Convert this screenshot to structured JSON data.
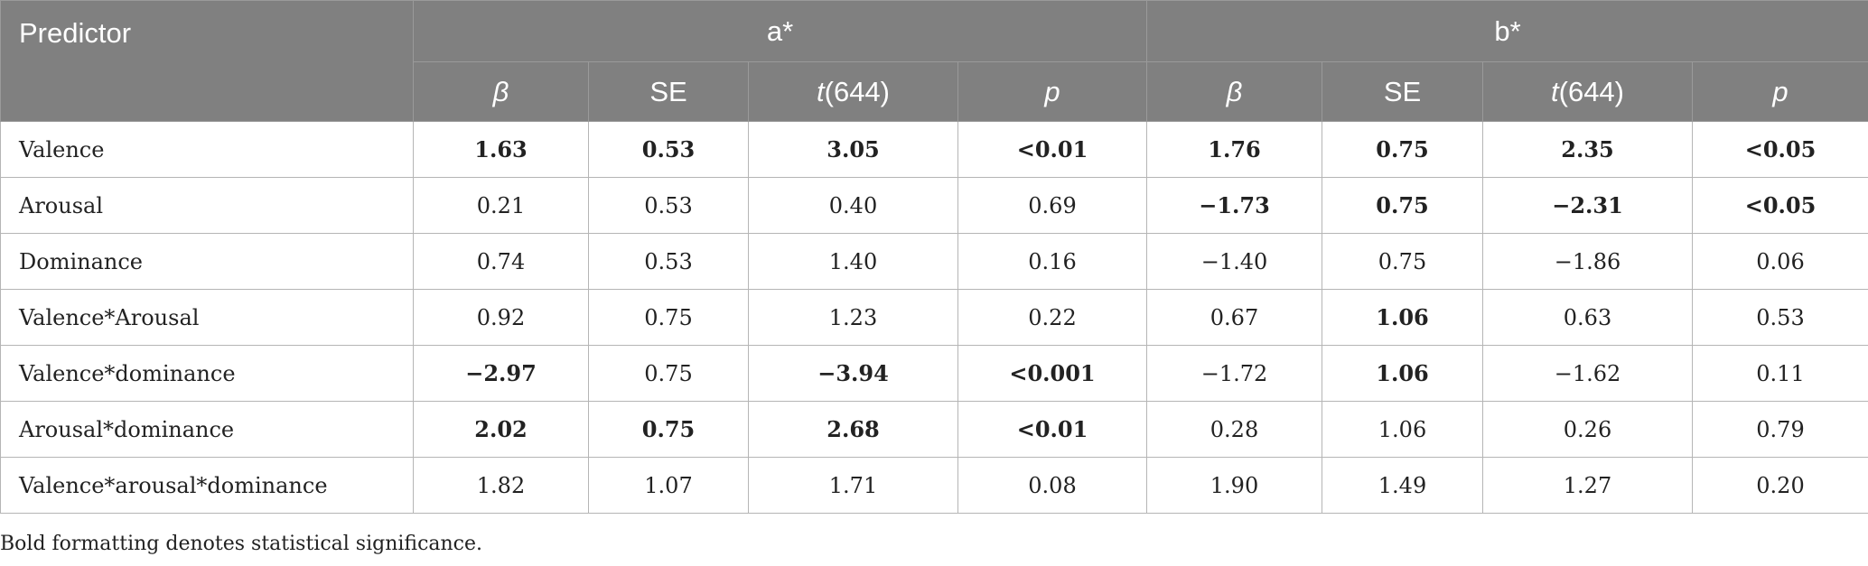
{
  "header": {
    "predictor": "Predictor",
    "groups": [
      "a*",
      "b*"
    ],
    "subcolumns": [
      {
        "pre": "",
        "ital": "β",
        "post": ""
      },
      {
        "pre": "SE",
        "ital": "",
        "post": ""
      },
      {
        "pre": "",
        "ital": "t",
        "post": "(644)"
      },
      {
        "pre": "",
        "ital": "p",
        "post": ""
      }
    ]
  },
  "rows": [
    {
      "label": "Valence",
      "cells": [
        {
          "v": "1.63",
          "bold": true
        },
        {
          "v": "0.53",
          "bold": true
        },
        {
          "v": "3.05",
          "bold": true
        },
        {
          "v": "<0.01",
          "bold": true
        },
        {
          "v": "1.76",
          "bold": true
        },
        {
          "v": "0.75",
          "bold": true
        },
        {
          "v": "2.35",
          "bold": true
        },
        {
          "v": "<0.05",
          "bold": true
        }
      ]
    },
    {
      "label": "Arousal",
      "cells": [
        {
          "v": "0.21",
          "bold": false
        },
        {
          "v": "0.53",
          "bold": false
        },
        {
          "v": "0.40",
          "bold": false
        },
        {
          "v": "0.69",
          "bold": false
        },
        {
          "v": "−1.73",
          "bold": true
        },
        {
          "v": "0.75",
          "bold": true
        },
        {
          "v": "−2.31",
          "bold": true
        },
        {
          "v": "<0.05",
          "bold": true
        }
      ]
    },
    {
      "label": "Dominance",
      "cells": [
        {
          "v": "0.74",
          "bold": false
        },
        {
          "v": "0.53",
          "bold": false
        },
        {
          "v": "1.40",
          "bold": false
        },
        {
          "v": "0.16",
          "bold": false
        },
        {
          "v": "−1.40",
          "bold": false
        },
        {
          "v": "0.75",
          "bold": false
        },
        {
          "v": "−1.86",
          "bold": false
        },
        {
          "v": "0.06",
          "bold": false
        }
      ]
    },
    {
      "label": "Valence*Arousal",
      "cells": [
        {
          "v": "0.92",
          "bold": false
        },
        {
          "v": "0.75",
          "bold": false
        },
        {
          "v": "1.23",
          "bold": false
        },
        {
          "v": "0.22",
          "bold": false
        },
        {
          "v": "0.67",
          "bold": false
        },
        {
          "v": "1.06",
          "bold": true
        },
        {
          "v": "0.63",
          "bold": false
        },
        {
          "v": "0.53",
          "bold": false
        }
      ]
    },
    {
      "label": "Valence*dominance",
      "cells": [
        {
          "v": "−2.97",
          "bold": true
        },
        {
          "v": "0.75",
          "bold": false
        },
        {
          "v": "−3.94",
          "bold": true
        },
        {
          "v": "<0.001",
          "bold": true
        },
        {
          "v": "−1.72",
          "bold": false
        },
        {
          "v": "1.06",
          "bold": true
        },
        {
          "v": "−1.62",
          "bold": false
        },
        {
          "v": "0.11",
          "bold": false
        }
      ]
    },
    {
      "label": "Arousal*dominance",
      "cells": [
        {
          "v": "2.02",
          "bold": true
        },
        {
          "v": "0.75",
          "bold": true
        },
        {
          "v": "2.68",
          "bold": true
        },
        {
          "v": "<0.01",
          "bold": true
        },
        {
          "v": "0.28",
          "bold": false
        },
        {
          "v": "1.06",
          "bold": false
        },
        {
          "v": "0.26",
          "bold": false
        },
        {
          "v": "0.79",
          "bold": false
        }
      ]
    },
    {
      "label": "Valence*arousal*dominance",
      "cells": [
        {
          "v": "1.82",
          "bold": false
        },
        {
          "v": "1.07",
          "bold": false
        },
        {
          "v": "1.71",
          "bold": false
        },
        {
          "v": "0.08",
          "bold": false
        },
        {
          "v": "1.90",
          "bold": false
        },
        {
          "v": "1.49",
          "bold": false
        },
        {
          "v": "1.27",
          "bold": false
        },
        {
          "v": "0.20",
          "bold": false
        }
      ]
    }
  ],
  "footnote": "Bold formatting denotes statistical significance."
}
